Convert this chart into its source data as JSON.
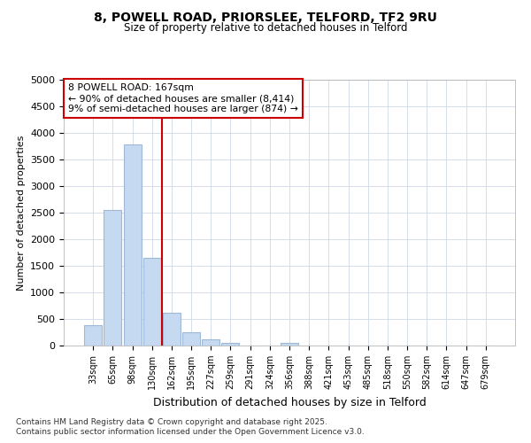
{
  "title": "8, POWELL ROAD, PRIORSLEE, TELFORD, TF2 9RU",
  "subtitle": "Size of property relative to detached houses in Telford",
  "xlabel": "Distribution of detached houses by size in Telford",
  "ylabel": "Number of detached properties",
  "property_label": "8 POWELL ROAD: 167sqm",
  "annotation_line1": "← 90% of detached houses are smaller (8,414)",
  "annotation_line2": "9% of semi-detached houses are larger (874) →",
  "footer_line1": "Contains HM Land Registry data © Crown copyright and database right 2025.",
  "footer_line2": "Contains public sector information licensed under the Open Government Licence v3.0.",
  "categories": [
    "33sqm",
    "65sqm",
    "98sqm",
    "130sqm",
    "162sqm",
    "195sqm",
    "227sqm",
    "259sqm",
    "291sqm",
    "324sqm",
    "356sqm",
    "388sqm",
    "421sqm",
    "453sqm",
    "485sqm",
    "518sqm",
    "550sqm",
    "582sqm",
    "614sqm",
    "647sqm",
    "679sqm"
  ],
  "values": [
    380,
    2550,
    3780,
    1650,
    620,
    245,
    110,
    55,
    5,
    5,
    55,
    0,
    0,
    0,
    0,
    0,
    0,
    0,
    0,
    0,
    0
  ],
  "bar_color": "#c5d9f0",
  "bar_edge_color": "#a0b8d8",
  "vline_color": "#cc0000",
  "vline_x_index": 4,
  "annotation_box_color": "#ffffff",
  "annotation_box_edge": "#cc0000",
  "background_color": "#ffffff",
  "plot_bg_color": "#ffffff",
  "grid_color": "#d0d8e8",
  "ylim": [
    0,
    5000
  ],
  "yticks": [
    0,
    500,
    1000,
    1500,
    2000,
    2500,
    3000,
    3500,
    4000,
    4500,
    5000
  ]
}
